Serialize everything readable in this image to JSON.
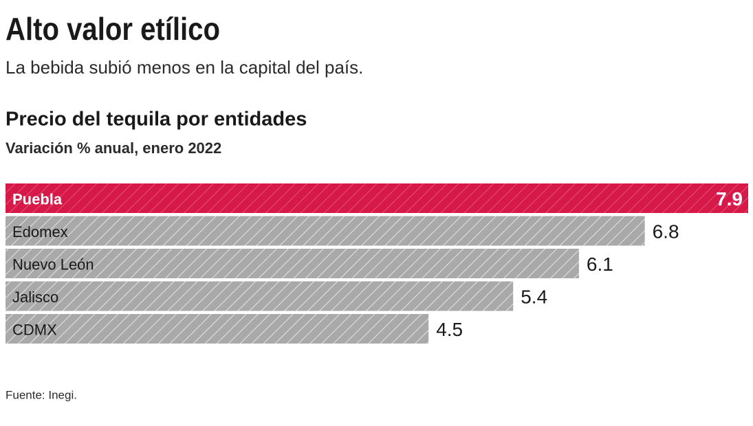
{
  "chart_data": {
    "type": "bar",
    "orientation": "horizontal",
    "title": "Alto valor etílico",
    "subtitle": "La bebida subió menos en la capital del país.",
    "chart_title": "Precio del tequila por entidades",
    "chart_subtitle": "Variación % anual, enero 2022",
    "categories": [
      "Puebla",
      "Edomex",
      "Nuevo León",
      "Jalisco",
      "CDMX"
    ],
    "values": [
      7.9,
      6.8,
      6.1,
      5.4,
      4.5
    ],
    "colors": [
      "#d7194a",
      "#a9a9a9",
      "#a9a9a9",
      "#a9a9a9",
      "#a9a9a9"
    ],
    "source": "Fuente: Inegi."
  }
}
